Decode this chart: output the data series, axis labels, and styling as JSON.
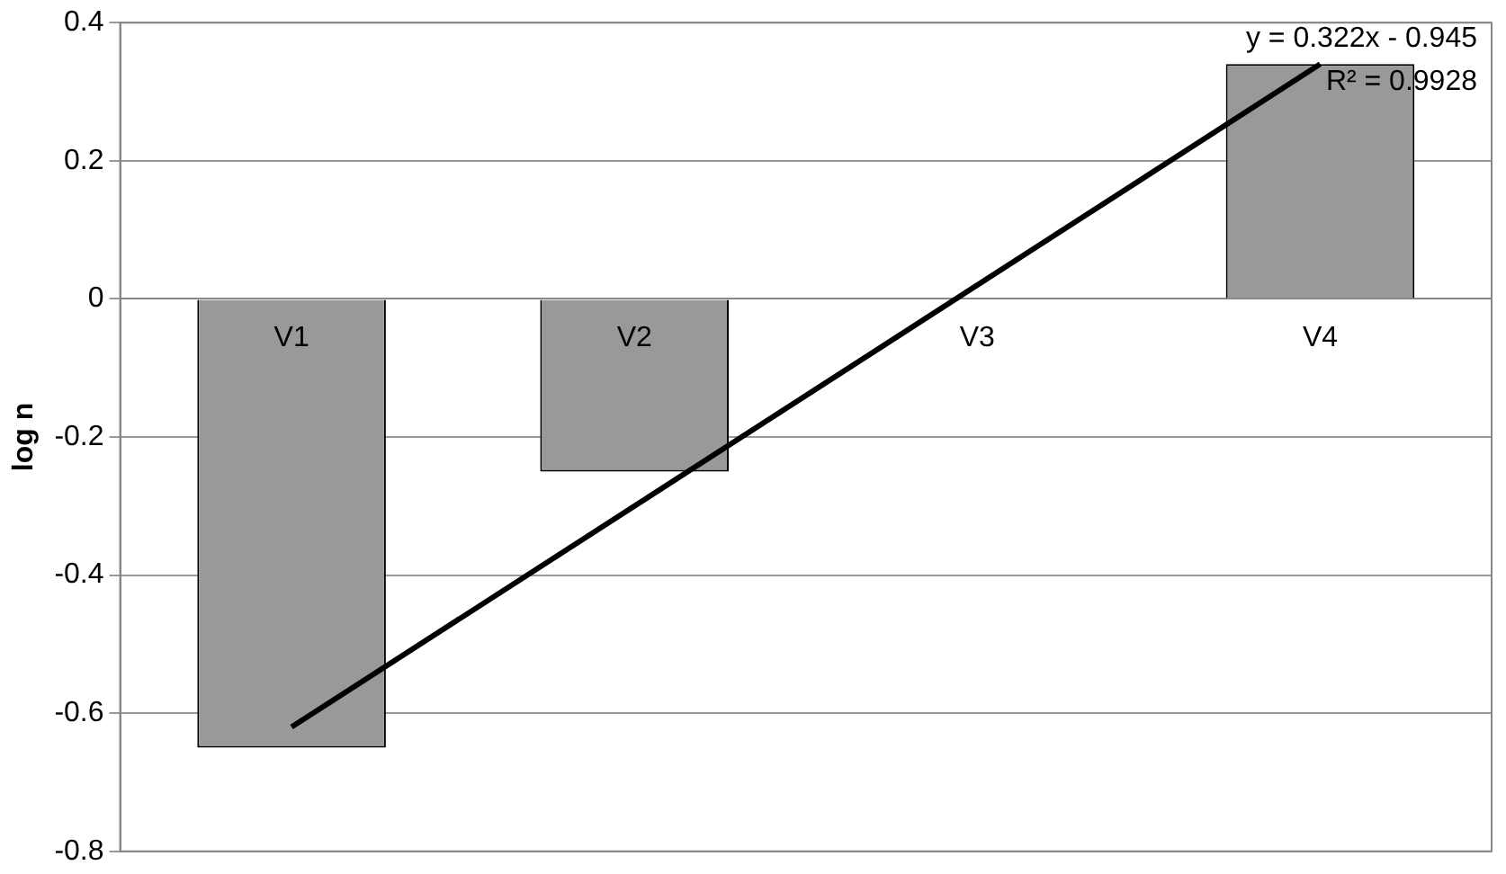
{
  "chart_data": {
    "type": "bar",
    "ylabel": "log n",
    "categories": [
      "V1",
      "V2",
      "V3",
      "V4"
    ],
    "series": [
      {
        "color": "#999999",
        "values": [
          -0.65,
          -0.25,
          0,
          0.34
        ]
      },
      {
        "type": "line",
        "color": "#000000",
        "x": [
          "V1",
          "V4"
        ],
        "values": [
          -0.62,
          0.34
        ]
      }
    ],
    "ylim": [
      -0.8,
      0.4
    ],
    "yticks": [
      -0.8,
      -0.6,
      -0.4,
      -0.2,
      0,
      0.2,
      0.4
    ],
    "grid": "y",
    "legend": false,
    "marker": "none",
    "annotations": [
      "y = 0.322x - 0.945",
      "R² = 0.9928"
    ]
  }
}
